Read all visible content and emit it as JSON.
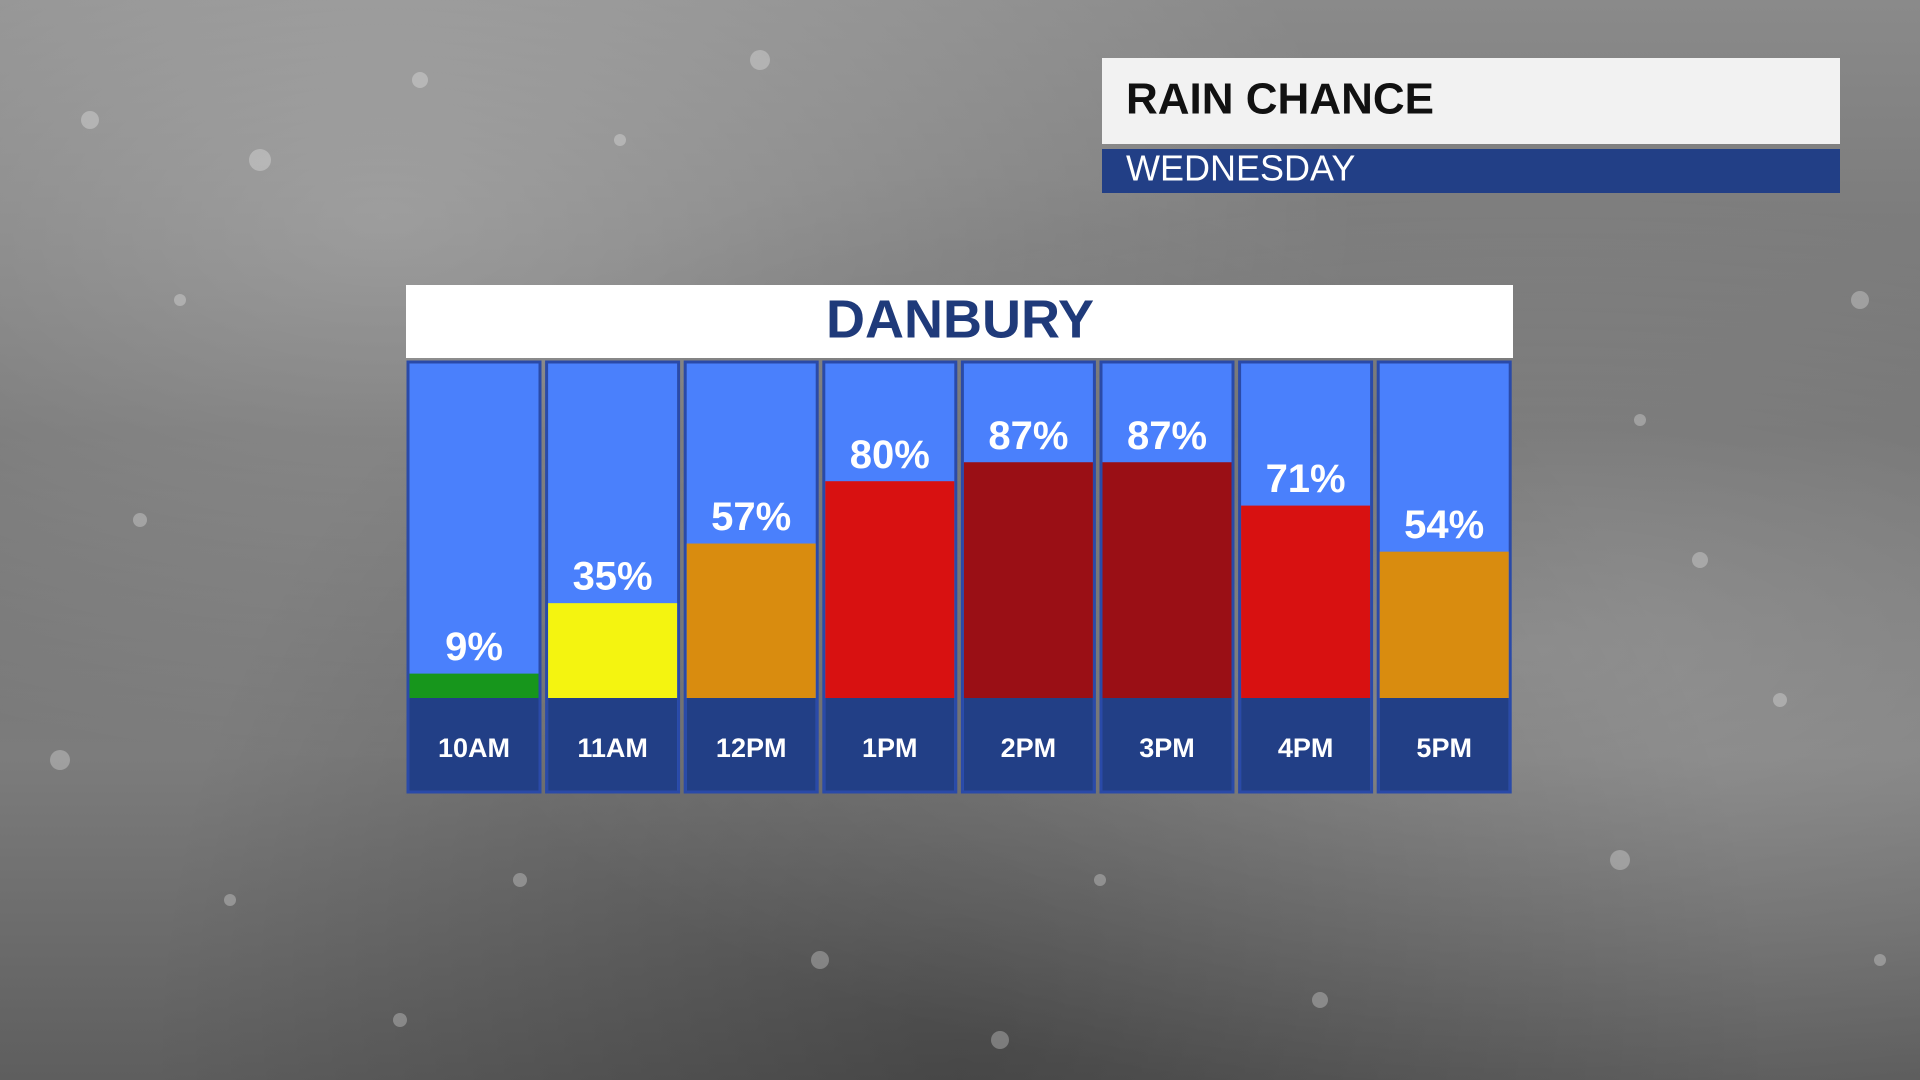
{
  "header": {
    "title": "RAIN CHANCE",
    "subtitle": "WEDNESDAY"
  },
  "chart_data": {
    "type": "bar",
    "title": "DANBURY",
    "categories": [
      "10AM",
      "11AM",
      "12PM",
      "1PM",
      "2PM",
      "3PM",
      "4PM",
      "5PM"
    ],
    "values": [
      9,
      35,
      57,
      80,
      87,
      87,
      71,
      54
    ],
    "value_labels": [
      "9%",
      "35%",
      "57%",
      "80%",
      "87%",
      "87%",
      "71%",
      "54%"
    ],
    "colors": [
      "#17961c",
      "#f4f410",
      "#d98c0f",
      "#d81111",
      "#9a0f15",
      "#9a0f15",
      "#d81111",
      "#d98c0f"
    ]
  }
}
